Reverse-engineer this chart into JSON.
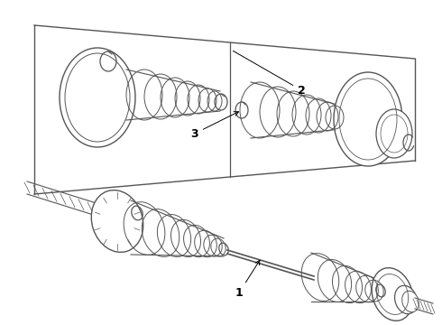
{
  "bg_color": "#ffffff",
  "line_color": "#555555",
  "fig_width": 4.9,
  "fig_height": 3.6,
  "dpi": 100,
  "label_1": "1",
  "label_2": "2",
  "label_3": "3"
}
